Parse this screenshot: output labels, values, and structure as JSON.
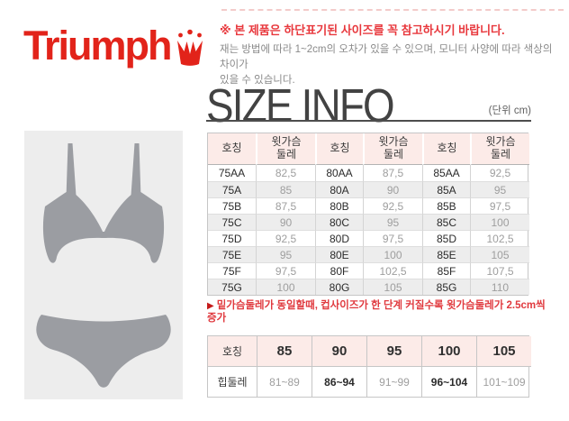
{
  "logo": {
    "text": "Triumph"
  },
  "notice": {
    "headline": "※ 본 제품은 하단표기된 사이즈를 꼭 참고하시기 바랍니다.",
    "body_line1": "재는 방법에 따라 1~2cm의 오차가 있을 수 있으며, 모니터 사양에 따라 색상의 차이가",
    "body_line2": "있을 수 있습니다."
  },
  "title": {
    "text": "SIZE INFO",
    "unit": "(단위 cm)"
  },
  "bra_table": {
    "headers": [
      "호칭",
      "윗가슴\n둘레",
      "호칭",
      "윗가슴\n둘레",
      "호칭",
      "윗가슴\n둘레"
    ],
    "rows": [
      [
        "75AA",
        "82,5",
        "80AA",
        "87,5",
        "85AA",
        "92,5"
      ],
      [
        "75A",
        "85",
        "80A",
        "90",
        "85A",
        "95"
      ],
      [
        "75B",
        "87,5",
        "80B",
        "92,5",
        "85B",
        "97,5"
      ],
      [
        "75C",
        "90",
        "80C",
        "95",
        "85C",
        "100"
      ],
      [
        "75D",
        "92,5",
        "80D",
        "97,5",
        "85D",
        "102,5"
      ],
      [
        "75E",
        "95",
        "80E",
        "100",
        "85E",
        "105"
      ],
      [
        "75F",
        "97,5",
        "80F",
        "102,5",
        "85F",
        "107,5"
      ],
      [
        "75G",
        "100",
        "80G",
        "105",
        "85G",
        "110"
      ]
    ]
  },
  "note": {
    "bullet": "▶",
    "text": "밑가슴둘레가 동일할때, 컵사이즈가 한 단계 커질수록 윗가슴둘레가 2.5cm씩 증가"
  },
  "hip_table": {
    "headers": [
      "호칭",
      "85",
      "90",
      "95",
      "100",
      "105"
    ],
    "row_label": "힙둘레",
    "values": [
      "81~89",
      "86~94",
      "91~99",
      "96~104",
      "101~109"
    ]
  },
  "colors": {
    "brand_red": "#e2231a",
    "notice_red": "#e8383d",
    "table_header_pink": "#fcebe8",
    "silhouette_gray": "#9b9da2",
    "alt_row_gray": "#ededed"
  }
}
